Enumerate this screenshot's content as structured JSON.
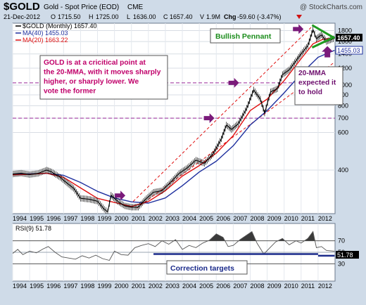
{
  "header": {
    "symbol": "$GOLD",
    "name": "Gold - Spot Price (EOD)",
    "exchange": "CME",
    "watermark": "@ StockCharts.com",
    "date": "21-Dec-2012",
    "o_label": "O",
    "o": "1715.50",
    "h_label": "H",
    "h": "1725.00",
    "l_label": "L",
    "l": "1636.00",
    "c_label": "C",
    "c": "1657.40",
    "v_label": "V",
    "v": "1.9M",
    "chg_label": "Chg",
    "chg": "-59.60 (-3.47%)"
  },
  "legend": {
    "main": "$GOLD (Monthly) 1657.40",
    "ma40": "MA(40) 1455.03",
    "ma20": "MA(20) 1663.22"
  },
  "annotations": {
    "callout_text": "GOLD is at a cricitical point at the 20-MMA, with it moves sharply higher, or sharply lower. We vote the former",
    "pennant_label": "Bullish Pennant",
    "ma_note": "20-MMA expected it to hold",
    "correction_label": "Correction targets"
  },
  "price_labels": {
    "last": "1657.40",
    "ma40": "1455.03"
  },
  "rsi_labels": {
    "title": "RSI(9) 51.78",
    "last": "51.78"
  },
  "colors": {
    "price": "#000000",
    "ma40": "#1e2f9e",
    "ma20": "#e01010",
    "accent": "#c0006a",
    "guide": "#9a2a9a",
    "pennant": "#1f9a1f",
    "arrow": "#7a1a7a",
    "rsi_fill": "#3a3a3a"
  },
  "chart_data": [
    {
      "type": "line",
      "title": "$GOLD (Monthly)",
      "scale": "log",
      "ylim": [
        250,
        1950
      ],
      "yticks": [
        400,
        600,
        700,
        800,
        900,
        1000,
        1200,
        1400,
        1600,
        1800
      ],
      "xlim": [
        1994.0,
        2013.0
      ],
      "xticks": [
        "1994",
        "1995",
        "1996",
        "1997",
        "1998",
        "1999",
        "2000",
        "2001",
        "2002",
        "2003",
        "2004",
        "2005",
        "2006",
        "2007",
        "2008",
        "2009",
        "2010",
        "2011",
        "2012"
      ],
      "series": [
        {
          "name": "$GOLD",
          "x": [
            1994.0,
            1994.5,
            1995.0,
            1995.5,
            1996.0,
            1996.3,
            1996.8,
            1997.2,
            1997.6,
            1998.0,
            1998.5,
            1999.0,
            1999.4,
            1999.6,
            1999.8,
            2000.2,
            2000.6,
            2001.0,
            2001.4,
            2001.8,
            2002.3,
            2002.8,
            2003.3,
            2003.8,
            2004.3,
            2004.8,
            2005.3,
            2005.8,
            2006.3,
            2006.6,
            2006.9,
            2007.3,
            2007.8,
            2008.2,
            2008.6,
            2008.85,
            2009.2,
            2009.6,
            2009.9,
            2010.3,
            2010.7,
            2011.0,
            2011.4,
            2011.7,
            2011.9,
            2012.2,
            2012.5,
            2012.97
          ],
          "values": [
            383,
            387,
            381,
            386,
            400,
            392,
            370,
            348,
            328,
            295,
            292,
            286,
            262,
            255,
            305,
            285,
            272,
            268,
            268,
            290,
            315,
            320,
            350,
            385,
            410,
            445,
            430,
            475,
            560,
            650,
            620,
            660,
            780,
            950,
            860,
            740,
            930,
            960,
            1120,
            1180,
            1300,
            1400,
            1530,
            1820,
            1650,
            1720,
            1600,
            1657
          ]
        },
        {
          "name": "MA(20)",
          "x": [
            1994.0,
            1995.0,
            1996.0,
            1997.0,
            1998.0,
            1999.0,
            2000.0,
            2001.0,
            2002.0,
            2003.0,
            2004.0,
            2005.0,
            2006.0,
            2007.0,
            2008.0,
            2009.0,
            2010.0,
            2011.0,
            2011.7,
            2012.3,
            2012.97
          ],
          "values": [
            380,
            382,
            387,
            370,
            330,
            295,
            282,
            270,
            285,
            320,
            375,
            420,
            480,
            580,
            760,
            860,
            1050,
            1330,
            1560,
            1640,
            1663
          ]
        },
        {
          "name": "MA(40)",
          "x": [
            1994.0,
            1995.0,
            1996.0,
            1997.0,
            1998.0,
            1999.0,
            2000.0,
            2001.0,
            2002.0,
            2003.0,
            2004.0,
            2005.0,
            2006.0,
            2007.0,
            2008.0,
            2009.0,
            2010.0,
            2011.0,
            2012.0,
            2012.97
          ],
          "values": [
            382,
            384,
            386,
            378,
            350,
            318,
            296,
            284,
            280,
            296,
            338,
            392,
            440,
            520,
            650,
            760,
            920,
            1130,
            1350,
            1455
          ]
        }
      ],
      "horizontal_guides": [
        1025,
        700
      ],
      "trend_channel": {
        "upper": [
          [
            2001.1,
            285
          ],
          [
            2011.7,
            1900
          ]
        ],
        "lower": [
          [
            2001.3,
            265
          ],
          [
            2012.97,
            1280
          ]
        ]
      },
      "pennant": {
        "upper": [
          [
            2011.65,
            1910
          ],
          [
            2012.97,
            1660
          ]
        ],
        "lower": [
          [
            2011.65,
            1500
          ],
          [
            2012.97,
            1680
          ]
        ]
      },
      "arrows": [
        [
          2000.6,
          304
        ],
        [
          2007.3,
          1025
        ],
        [
          2005.85,
          700
        ],
        [
          2011.1,
          1830
        ]
      ]
    },
    {
      "type": "line",
      "title": "RSI(9)",
      "ylim": [
        0,
        100
      ],
      "yticks": [
        30,
        50,
        70
      ],
      "xlim": [
        1994.0,
        2013.0
      ],
      "xticks": [
        "1994",
        "1995",
        "1996",
        "1997",
        "1998",
        "1999",
        "2000",
        "2001",
        "2002",
        "2003",
        "2004",
        "2005",
        "2006",
        "2007",
        "2008",
        "2009",
        "2010",
        "2011",
        "2012"
      ],
      "series": [
        {
          "name": "RSI(9)",
          "x": [
            1994.0,
            1994.3,
            1994.6,
            1995.0,
            1995.4,
            1995.8,
            1996.1,
            1996.5,
            1996.9,
            1997.3,
            1997.7,
            1998.1,
            1998.5,
            1998.9,
            1999.3,
            1999.7,
            2000.0,
            2000.4,
            2000.8,
            2001.2,
            2001.6,
            2002.0,
            2002.4,
            2002.8,
            2003.2,
            2003.6,
            2004.0,
            2004.4,
            2004.8,
            2005.2,
            2005.6,
            2006.0,
            2006.4,
            2006.7,
            2007.0,
            2007.4,
            2007.8,
            2008.1,
            2008.4,
            2008.8,
            2009.1,
            2009.5,
            2009.9,
            2010.3,
            2010.7,
            2011.0,
            2011.4,
            2011.7,
            2011.9,
            2012.2,
            2012.5,
            2012.97
          ],
          "values": [
            48,
            55,
            46,
            52,
            49,
            56,
            60,
            50,
            42,
            40,
            38,
            44,
            40,
            45,
            39,
            36,
            52,
            46,
            45,
            58,
            62,
            65,
            60,
            70,
            64,
            72,
            55,
            62,
            58,
            66,
            71,
            82,
            76,
            60,
            62,
            72,
            80,
            86,
            66,
            47,
            56,
            68,
            74,
            63,
            70,
            66,
            74,
            86,
            58,
            60,
            53,
            51.78
          ]
        }
      ],
      "correction_targets": [
        [
          2002.3,
          2012.0,
          47
        ],
        [
          2012.0,
          2012.97,
          44
        ]
      ]
    }
  ]
}
